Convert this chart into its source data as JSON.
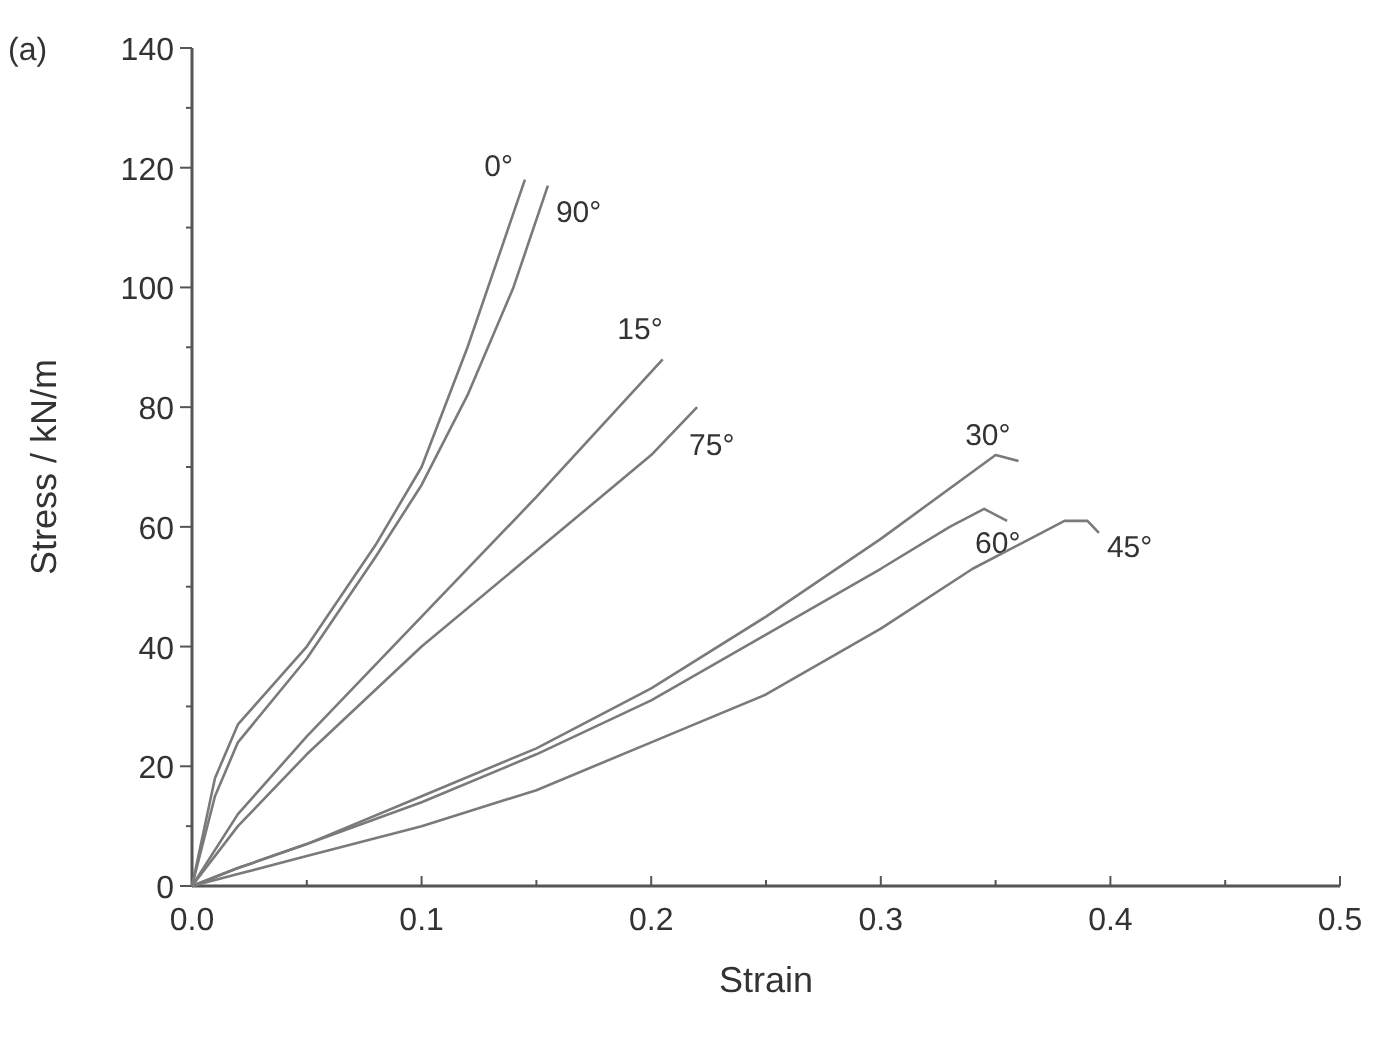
{
  "chart_data": {
    "type": "line",
    "xlabel": "Strain",
    "ylabel": "Stress / kN/m",
    "annotations": [
      "(a)"
    ],
    "xlim": [
      0,
      0.5
    ],
    "ylim": [
      0,
      140
    ],
    "xticks": [
      {
        "value": 0,
        "label": "0.0"
      },
      {
        "value": 0.05,
        "label": null
      },
      {
        "value": 0.1,
        "label": "0.1"
      },
      {
        "value": 0.15,
        "label": null
      },
      {
        "value": 0.2,
        "label": "0.2"
      },
      {
        "value": 0.25,
        "label": null
      },
      {
        "value": 0.3,
        "label": "0.3"
      },
      {
        "value": 0.35,
        "label": null
      },
      {
        "value": 0.4,
        "label": "0.4"
      },
      {
        "value": 0.45,
        "label": null
      },
      {
        "value": 0.5,
        "label": "0.5"
      }
    ],
    "yticks": [
      0,
      {
        "value": 10,
        "label": null
      },
      20,
      {
        "value": 30,
        "label": null
      },
      40,
      {
        "value": 50,
        "label": null
      },
      60,
      {
        "value": 70,
        "label": null
      },
      80,
      {
        "value": 90,
        "label": null
      },
      100,
      {
        "value": 110,
        "label": null
      },
      120,
      {
        "value": 130,
        "label": null
      },
      140
    ],
    "grid": false,
    "legend": false,
    "marker": "none",
    "line_style": "solid",
    "series": [
      {
        "name": "0°",
        "color": "#7a7a7a",
        "x": [
          0,
          0.01,
          0.02,
          0.05,
          0.08,
          0.1,
          0.12,
          0.145
        ],
        "values": [
          0,
          18,
          27,
          40,
          57,
          70,
          90,
          118
        ]
      },
      {
        "name": "90°",
        "color": "#7a7a7a",
        "x": [
          0,
          0.01,
          0.02,
          0.05,
          0.08,
          0.1,
          0.12,
          0.14,
          0.155
        ],
        "values": [
          0,
          15,
          24,
          38,
          55,
          67,
          82,
          100,
          117
        ]
      },
      {
        "name": "15°",
        "color": "#7a7a7a",
        "x": [
          0,
          0.02,
          0.05,
          0.1,
          0.15,
          0.205
        ],
        "values": [
          0,
          12,
          25,
          45,
          65,
          88
        ]
      },
      {
        "name": "75°",
        "color": "#7a7a7a",
        "x": [
          0,
          0.02,
          0.05,
          0.1,
          0.15,
          0.2,
          0.22
        ],
        "values": [
          0,
          10,
          22,
          40,
          56,
          72,
          80
        ]
      },
      {
        "name": "30°",
        "color": "#7a7a7a",
        "x": [
          0,
          0.02,
          0.05,
          0.1,
          0.15,
          0.2,
          0.25,
          0.3,
          0.35,
          0.36
        ],
        "values": [
          0,
          3,
          7,
          15,
          23,
          33,
          45,
          58,
          72,
          71
        ]
      },
      {
        "name": "60°",
        "color": "#7a7a7a",
        "x": [
          0,
          0.02,
          0.05,
          0.1,
          0.15,
          0.2,
          0.25,
          0.3,
          0.33,
          0.345,
          0.355
        ],
        "values": [
          0,
          3,
          7,
          14,
          22,
          31,
          42,
          53,
          60,
          63,
          61
        ]
      },
      {
        "name": "45°",
        "color": "#7a7a7a",
        "x": [
          0,
          0.02,
          0.05,
          0.1,
          0.15,
          0.2,
          0.25,
          0.3,
          0.34,
          0.36,
          0.38,
          0.39,
          0.395
        ],
        "values": [
          0,
          2,
          5,
          10,
          16,
          24,
          32,
          43,
          53,
          57,
          61,
          61,
          59
        ]
      }
    ]
  }
}
